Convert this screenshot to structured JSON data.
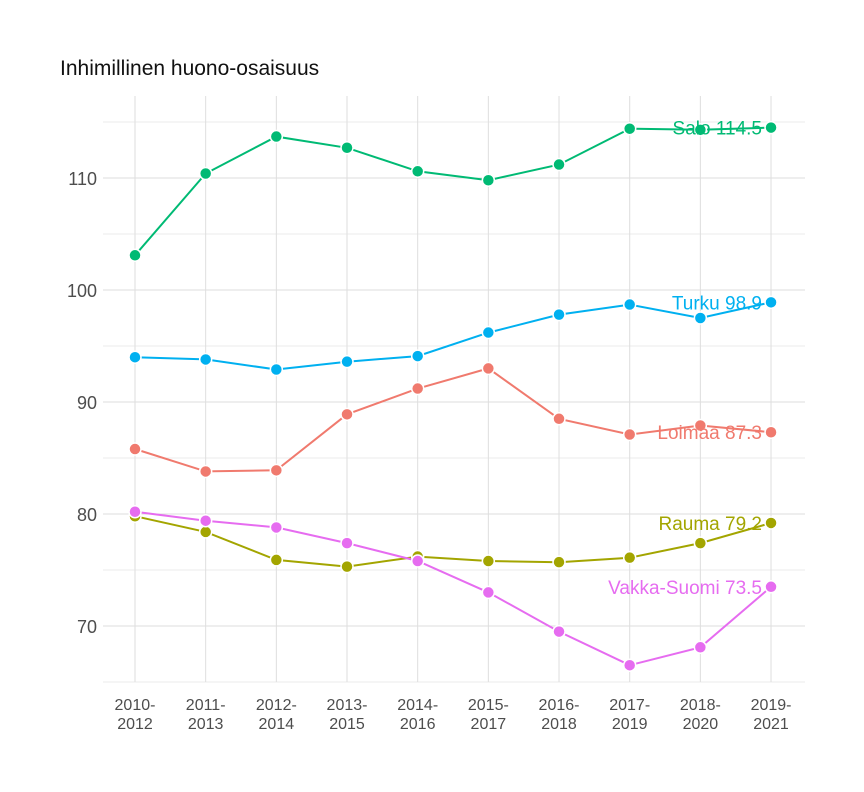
{
  "chart_data": {
    "type": "line",
    "title": "Inhimillinen huono-osaisuus",
    "xlabel": "",
    "ylabel": "",
    "categories": [
      [
        "2010-",
        "2012"
      ],
      [
        "2011-",
        "2013"
      ],
      [
        "2012-",
        "2014"
      ],
      [
        "2013-",
        "2015"
      ],
      [
        "2014-",
        "2016"
      ],
      [
        "2015-",
        "2017"
      ],
      [
        "2016-",
        "2018"
      ],
      [
        "2017-",
        "2019"
      ],
      [
        "2018-",
        "2020"
      ],
      [
        "2019-",
        "2021"
      ]
    ],
    "yticks": [
      70,
      80,
      90,
      100,
      110
    ],
    "ylim": [
      65,
      116
    ],
    "grid": true,
    "series": [
      {
        "name": "Salo",
        "color": "#00BA74",
        "end_label": "Salo 114.5",
        "values": [
          103.1,
          110.4,
          113.7,
          112.7,
          110.6,
          109.8,
          111.2,
          114.4,
          114.3,
          114.5
        ]
      },
      {
        "name": "Turku",
        "color": "#00B0F0",
        "end_label": "Turku 98.9",
        "values": [
          94.0,
          93.8,
          92.9,
          93.6,
          94.1,
          96.2,
          97.8,
          98.7,
          97.5,
          98.9
        ]
      },
      {
        "name": "Loimaa",
        "color": "#F07A6E",
        "end_label": "Loimaa 87.3",
        "values": [
          85.8,
          83.8,
          83.9,
          88.9,
          91.2,
          93.0,
          88.5,
          87.1,
          87.9,
          87.3
        ]
      },
      {
        "name": "Rauma",
        "color": "#A3A500",
        "end_label": "Rauma 79.2",
        "values": [
          79.8,
          78.4,
          75.9,
          75.3,
          76.2,
          75.8,
          75.7,
          76.1,
          77.4,
          79.2
        ]
      },
      {
        "name": "Vakka-Suomi",
        "color": "#E66CF0",
        "end_label": "Vakka-Suomi 73.5",
        "values": [
          80.2,
          79.4,
          78.8,
          77.4,
          75.8,
          73.0,
          69.5,
          66.5,
          68.1,
          73.5
        ]
      }
    ]
  }
}
